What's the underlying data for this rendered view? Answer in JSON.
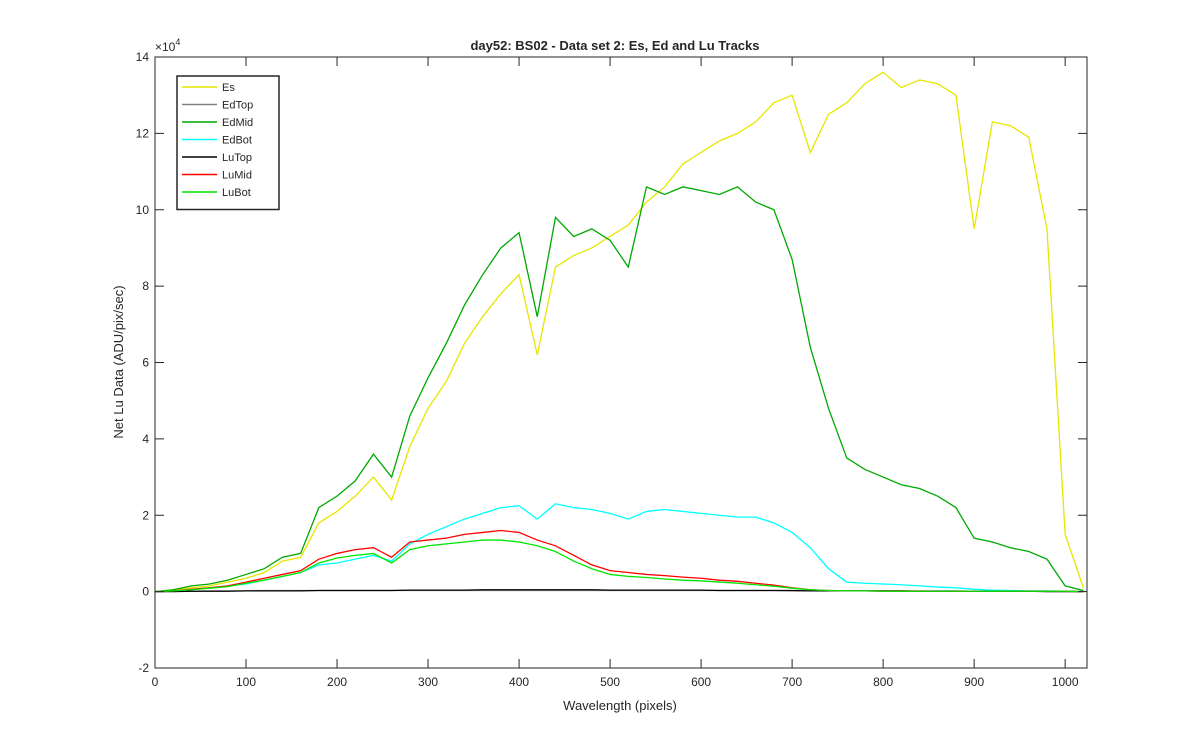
{
  "chart_data": {
    "type": "line",
    "title": "day52: BS02 - Data set 2: Es, Ed and Lu Tracks",
    "x_label": "Wavelength (pixels)",
    "y_label": "Net Lu Data (ADU/pix/sec)",
    "y_exponent_base": "×10",
    "y_exponent": "4",
    "xlim": [
      0,
      1024
    ],
    "ylim": [
      -2,
      14
    ],
    "xticks": [
      0,
      100,
      200,
      300,
      400,
      500,
      600,
      700,
      800,
      900,
      1000
    ],
    "yticks": [
      -2,
      0,
      2,
      4,
      6,
      8,
      10,
      12,
      14
    ],
    "legend": "upper left",
    "x": [
      0,
      20,
      40,
      60,
      80,
      100,
      120,
      140,
      160,
      180,
      200,
      220,
      240,
      260,
      280,
      300,
      320,
      340,
      360,
      380,
      400,
      420,
      440,
      460,
      480,
      500,
      520,
      540,
      560,
      580,
      600,
      620,
      640,
      660,
      680,
      700,
      720,
      740,
      760,
      780,
      800,
      820,
      840,
      860,
      880,
      900,
      920,
      940,
      960,
      980,
      1000,
      1020
    ],
    "series": [
      {
        "name": "Es",
        "color": "#e6e600",
        "values": [
          0,
          0.05,
          0.1,
          0.15,
          0.25,
          0.35,
          0.5,
          0.8,
          0.9,
          1.8,
          2.1,
          2.5,
          3.0,
          2.4,
          3.8,
          4.8,
          5.5,
          6.5,
          7.2,
          7.8,
          8.3,
          6.2,
          8.5,
          8.8,
          9.0,
          9.3,
          9.6,
          10.2,
          10.6,
          11.2,
          11.5,
          11.8,
          12.0,
          12.3,
          12.8,
          13.0,
          11.5,
          12.5,
          12.8,
          13.3,
          13.6,
          13.2,
          13.4,
          13.3,
          13.0,
          9.5,
          12.3,
          12.2,
          11.9,
          9.5,
          1.5,
          0.1
        ]
      },
      {
        "name": "EdTop",
        "color": "#808080",
        "values": [
          0,
          0.01,
          0.01,
          0.02,
          0.02,
          0.02,
          0.03,
          0.03,
          0.03,
          0.03,
          0.03,
          0.03,
          0.03,
          0.03,
          0.03,
          0.03,
          0.03,
          0.03,
          0.03,
          0.03,
          0.03,
          0.03,
          0.03,
          0.03,
          0.03,
          0.03,
          0.03,
          0.03,
          0.03,
          0.03,
          0.03,
          0.03,
          0.03,
          0.03,
          0.03,
          0.02,
          0.02,
          0.02,
          0.02,
          0.02,
          0.02,
          0.02,
          0.02,
          0.02,
          0.02,
          0.01,
          0.01,
          0.01,
          0.01,
          0.01,
          0.01,
          0
        ]
      },
      {
        "name": "EdMid",
        "color": "#00a800",
        "values": [
          0,
          0.05,
          0.15,
          0.2,
          0.3,
          0.45,
          0.6,
          0.9,
          1.0,
          2.2,
          2.5,
          2.9,
          3.6,
          3.0,
          4.6,
          5.6,
          6.5,
          7.5,
          8.3,
          9.0,
          9.4,
          7.2,
          9.8,
          9.3,
          9.5,
          9.2,
          8.5,
          10.6,
          10.4,
          10.6,
          10.5,
          10.4,
          10.6,
          10.2,
          10.0,
          8.7,
          6.4,
          4.8,
          3.5,
          3.2,
          3.0,
          2.8,
          2.7,
          2.5,
          2.2,
          1.4,
          1.3,
          1.15,
          1.05,
          0.85,
          0.15,
          0.03
        ]
      },
      {
        "name": "EdBot",
        "color": "#00ffff",
        "values": [
          0,
          0.02,
          0.05,
          0.1,
          0.15,
          0.2,
          0.3,
          0.4,
          0.5,
          0.7,
          0.75,
          0.85,
          0.95,
          0.8,
          1.25,
          1.5,
          1.7,
          1.9,
          2.05,
          2.2,
          2.25,
          1.9,
          2.3,
          2.2,
          2.15,
          2.05,
          1.9,
          2.1,
          2.15,
          2.1,
          2.05,
          2.0,
          1.95,
          1.95,
          1.8,
          1.55,
          1.15,
          0.6,
          0.25,
          0.22,
          0.2,
          0.18,
          0.15,
          0.12,
          0.1,
          0.06,
          0.04,
          0.03,
          0.02,
          0.02,
          0.01,
          0
        ]
      },
      {
        "name": "LuTop",
        "color": "#000000",
        "values": [
          0,
          0,
          0.01,
          0.01,
          0.01,
          0.02,
          0.02,
          0.02,
          0.02,
          0.03,
          0.03,
          0.03,
          0.03,
          0.03,
          0.04,
          0.04,
          0.04,
          0.04,
          0.05,
          0.05,
          0.05,
          0.05,
          0.05,
          0.05,
          0.05,
          0.04,
          0.04,
          0.04,
          0.04,
          0.04,
          0.04,
          0.03,
          0.03,
          0.03,
          0.03,
          0.03,
          0.02,
          0.02,
          0.02,
          0.02,
          0.02,
          0.02,
          0.01,
          0.01,
          0.01,
          0.01,
          0.01,
          0.01,
          0.01,
          0,
          0,
          0
        ]
      },
      {
        "name": "LuMid",
        "color": "#ff0000",
        "values": [
          0,
          0.02,
          0.06,
          0.1,
          0.15,
          0.25,
          0.35,
          0.45,
          0.55,
          0.85,
          1.0,
          1.1,
          1.15,
          0.9,
          1.3,
          1.35,
          1.4,
          1.5,
          1.55,
          1.6,
          1.55,
          1.35,
          1.2,
          0.95,
          0.7,
          0.55,
          0.5,
          0.45,
          0.42,
          0.38,
          0.35,
          0.3,
          0.27,
          0.22,
          0.17,
          0.1,
          0.05,
          0.03,
          0.02,
          0.02,
          0.01,
          0.01,
          0.01,
          0.01,
          0.01,
          0.01,
          0.01,
          0.01,
          0.01,
          0.01,
          0.01,
          0
        ]
      },
      {
        "name": "LuBot",
        "color": "#00e600",
        "values": [
          0,
          0.02,
          0.05,
          0.09,
          0.13,
          0.22,
          0.3,
          0.4,
          0.5,
          0.75,
          0.88,
          0.95,
          1.0,
          0.75,
          1.1,
          1.2,
          1.25,
          1.3,
          1.35,
          1.35,
          1.3,
          1.2,
          1.05,
          0.8,
          0.6,
          0.45,
          0.4,
          0.37,
          0.33,
          0.3,
          0.28,
          0.25,
          0.22,
          0.18,
          0.14,
          0.09,
          0.05,
          0.03,
          0.02,
          0.02,
          0.01,
          0.01,
          0.01,
          0.01,
          0.01,
          0.01,
          0.01,
          0.01,
          0.01,
          0.01,
          0.01,
          0
        ]
      }
    ]
  }
}
